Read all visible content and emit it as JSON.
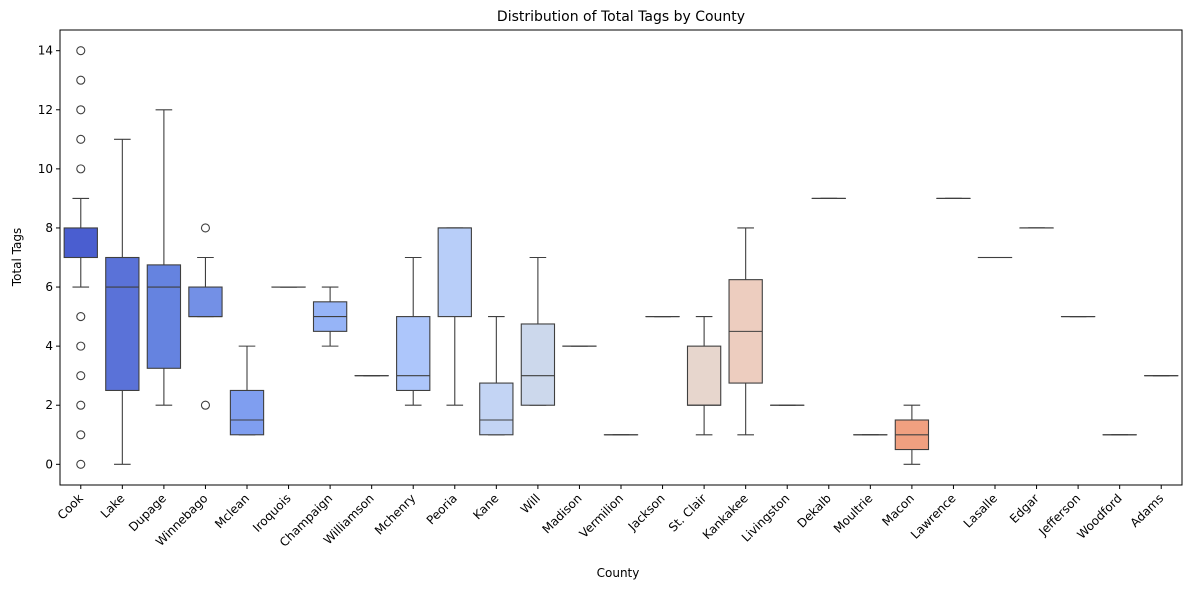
{
  "chart_data": {
    "type": "box",
    "title": "Distribution of Total Tags by County",
    "xlabel": "County",
    "ylabel": "Total Tags",
    "ylim": [
      -0.7,
      14.7
    ],
    "yticks": [
      0,
      2,
      4,
      6,
      8,
      10,
      12,
      14
    ],
    "grid": false,
    "legend": "none",
    "categories": [
      "Cook",
      "Lake",
      "Dupage",
      "Winnebago",
      "Mclean",
      "Iroquois",
      "Champaign",
      "Williamson",
      "Mchenry",
      "Peoria",
      "Kane",
      "Will",
      "Madison",
      "Vermilion",
      "Jackson",
      "St. Clair",
      "Kankakee",
      "Livingston",
      "Dekalb",
      "Moultrie",
      "Macon",
      "Lawrence",
      "Lasalle",
      "Edgar",
      "Jefferson",
      "Woodford",
      "Adams"
    ],
    "colors": [
      "#4a5ed0",
      "#5a72d8",
      "#6583e0",
      "#7390e6",
      "#7f9ef0",
      "#8aa9f3",
      "#96b4f7",
      "#a1bdf8",
      "#adc6fb",
      "#b8cef9",
      "#c3d4f4",
      "#ccd8ec",
      "#d4dbe5",
      "#dcdcdd",
      "#e2dad5",
      "#e7d6cd",
      "#edcdbf",
      "#efc4b1",
      "#f2b9a1",
      "#f3ae91",
      "#f0a080",
      "#ec9370",
      "#e88462",
      "#e07556",
      "#d9674a",
      "#cf5a40",
      "#c44e37"
    ],
    "boxes": [
      {
        "min": 6,
        "q1": 7,
        "median": 7,
        "q3": 8,
        "max": 9,
        "outliers": [
          0,
          1,
          2,
          3,
          4,
          5,
          10,
          11,
          12,
          13,
          14
        ]
      },
      {
        "min": 0,
        "q1": 2.5,
        "median": 6,
        "q3": 7,
        "max": 11,
        "outliers": []
      },
      {
        "min": 2,
        "q1": 3.25,
        "median": 6,
        "q3": 6.75,
        "max": 12,
        "outliers": []
      },
      {
        "min": 5,
        "q1": 5,
        "median": 5,
        "q3": 6,
        "max": 7,
        "outliers": [
          2,
          8
        ]
      },
      {
        "min": 1,
        "q1": 1,
        "median": 1.5,
        "q3": 2.5,
        "max": 4,
        "outliers": []
      },
      {
        "min": 6,
        "q1": 6,
        "median": 6,
        "q3": 6,
        "max": 6,
        "outliers": []
      },
      {
        "min": 4,
        "q1": 4.5,
        "median": 5,
        "q3": 5.5,
        "max": 6,
        "outliers": []
      },
      {
        "min": 3,
        "q1": 3,
        "median": 3,
        "q3": 3,
        "max": 3,
        "outliers": []
      },
      {
        "min": 2,
        "q1": 2.5,
        "median": 3,
        "q3": 5,
        "max": 7,
        "outliers": []
      },
      {
        "min": 2,
        "q1": 5,
        "median": 8,
        "q3": 8,
        "max": 8,
        "outliers": []
      },
      {
        "min": 1,
        "q1": 1,
        "median": 1.5,
        "q3": 2.75,
        "max": 5,
        "outliers": []
      },
      {
        "min": 2,
        "q1": 2,
        "median": 3,
        "q3": 4.75,
        "max": 7,
        "outliers": []
      },
      {
        "min": 4,
        "q1": 4,
        "median": 4,
        "q3": 4,
        "max": 4,
        "outliers": []
      },
      {
        "min": 1,
        "q1": 1,
        "median": 1,
        "q3": 1,
        "max": 1,
        "outliers": []
      },
      {
        "min": 5,
        "q1": 5,
        "median": 5,
        "q3": 5,
        "max": 5,
        "outliers": []
      },
      {
        "min": 1,
        "q1": 2,
        "median": 2,
        "q3": 4,
        "max": 5,
        "outliers": []
      },
      {
        "min": 1,
        "q1": 2.75,
        "median": 4.5,
        "q3": 6.25,
        "max": 8,
        "outliers": []
      },
      {
        "min": 2,
        "q1": 2,
        "median": 2,
        "q3": 2,
        "max": 2,
        "outliers": []
      },
      {
        "min": 9,
        "q1": 9,
        "median": 9,
        "q3": 9,
        "max": 9,
        "outliers": []
      },
      {
        "min": 1,
        "q1": 1,
        "median": 1,
        "q3": 1,
        "max": 1,
        "outliers": []
      },
      {
        "min": 0,
        "q1": 0.5,
        "median": 1,
        "q3": 1.5,
        "max": 2,
        "outliers": []
      },
      {
        "min": 9,
        "q1": 9,
        "median": 9,
        "q3": 9,
        "max": 9,
        "outliers": []
      },
      {
        "min": 7,
        "q1": 7,
        "median": 7,
        "q3": 7,
        "max": 7,
        "outliers": []
      },
      {
        "min": 8,
        "q1": 8,
        "median": 8,
        "q3": 8,
        "max": 8,
        "outliers": []
      },
      {
        "min": 5,
        "q1": 5,
        "median": 5,
        "q3": 5,
        "max": 5,
        "outliers": []
      },
      {
        "min": 1,
        "q1": 1,
        "median": 1,
        "q3": 1,
        "max": 1,
        "outliers": []
      },
      {
        "min": 3,
        "q1": 3,
        "median": 3,
        "q3": 3,
        "max": 3,
        "outliers": []
      }
    ]
  }
}
